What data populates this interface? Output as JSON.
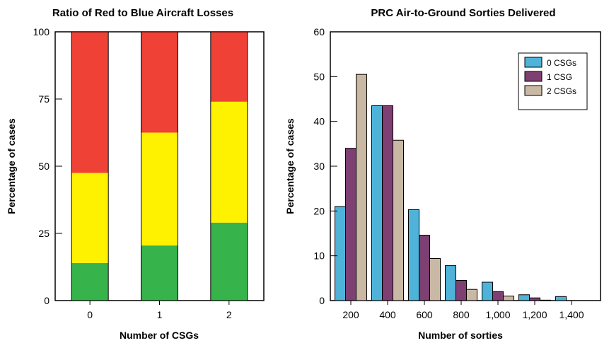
{
  "chart_data": [
    {
      "type": "bar",
      "stacked": true,
      "title": "Ratio of Red to Blue Aircraft Losses",
      "xlabel": "Number of CSGs",
      "ylabel": "Percentage of cases",
      "categories": [
        "0",
        "1",
        "2"
      ],
      "ylim": [
        0,
        100
      ],
      "yticks": [
        "0",
        "25",
        "50",
        "75",
        "100"
      ],
      "series": [
        {
          "color": "#36b34a",
          "values": [
            14,
            20.5,
            29
          ]
        },
        {
          "color": "#fff200",
          "values": [
            33.5,
            42,
            45
          ]
        },
        {
          "color": "#ef4136",
          "values": [
            52.5,
            37.5,
            26
          ]
        }
      ],
      "legend": false
    },
    {
      "type": "bar",
      "title": "PRC Air-to-Ground Sorties Delivered",
      "xlabel": "Number of sorties",
      "ylabel": "Percentage of cases",
      "categories": [
        "200",
        "400",
        "600",
        "800",
        "1,000",
        "1,200",
        "1,400"
      ],
      "ylim": [
        0,
        60
      ],
      "yticks": [
        "0",
        "10",
        "20",
        "30",
        "40",
        "50",
        "60"
      ],
      "series": [
        {
          "name": "0 CSGs",
          "color": "#4fb3d9",
          "values": [
            21,
            43.5,
            20.3,
            7.8,
            4.1,
            1.3,
            0.9
          ]
        },
        {
          "name": "1 CSG",
          "color": "#7e3f72",
          "values": [
            34,
            43.5,
            14.6,
            4.5,
            2.0,
            0.6,
            0
          ]
        },
        {
          "name": "2 CSGs",
          "color": "#c8b8a4",
          "values": [
            50.5,
            35.8,
            9.4,
            2.5,
            1.0,
            0.1,
            0
          ]
        }
      ],
      "legend": "top-right"
    }
  ]
}
